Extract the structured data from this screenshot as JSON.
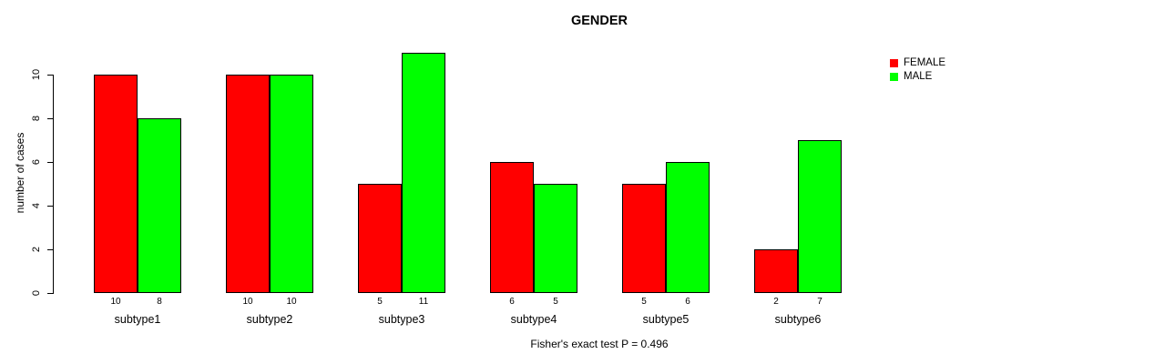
{
  "chart_data": {
    "type": "bar",
    "title": "GENDER",
    "xlabel": "",
    "ylabel": "number of cases",
    "annotation": "Fisher's exact test P = 0.496",
    "categories": [
      "subtype1",
      "subtype2",
      "subtype3",
      "subtype4",
      "subtype5",
      "subtype6"
    ],
    "series": [
      {
        "name": "FEMALE",
        "color": "#ff0000",
        "values": [
          10,
          10,
          5,
          6,
          5,
          2
        ]
      },
      {
        "name": "MALE",
        "color": "#00ff00",
        "values": [
          8,
          10,
          11,
          5,
          6,
          7
        ]
      }
    ],
    "value_labels_shown": true,
    "yticks": [
      0,
      2,
      4,
      6,
      8,
      10
    ],
    "ylim": [
      0,
      11
    ],
    "grid": false,
    "legend_position": "top-right",
    "background_color": "#ffffff",
    "bar_border_color": "#000000",
    "text_color": "#000000"
  }
}
